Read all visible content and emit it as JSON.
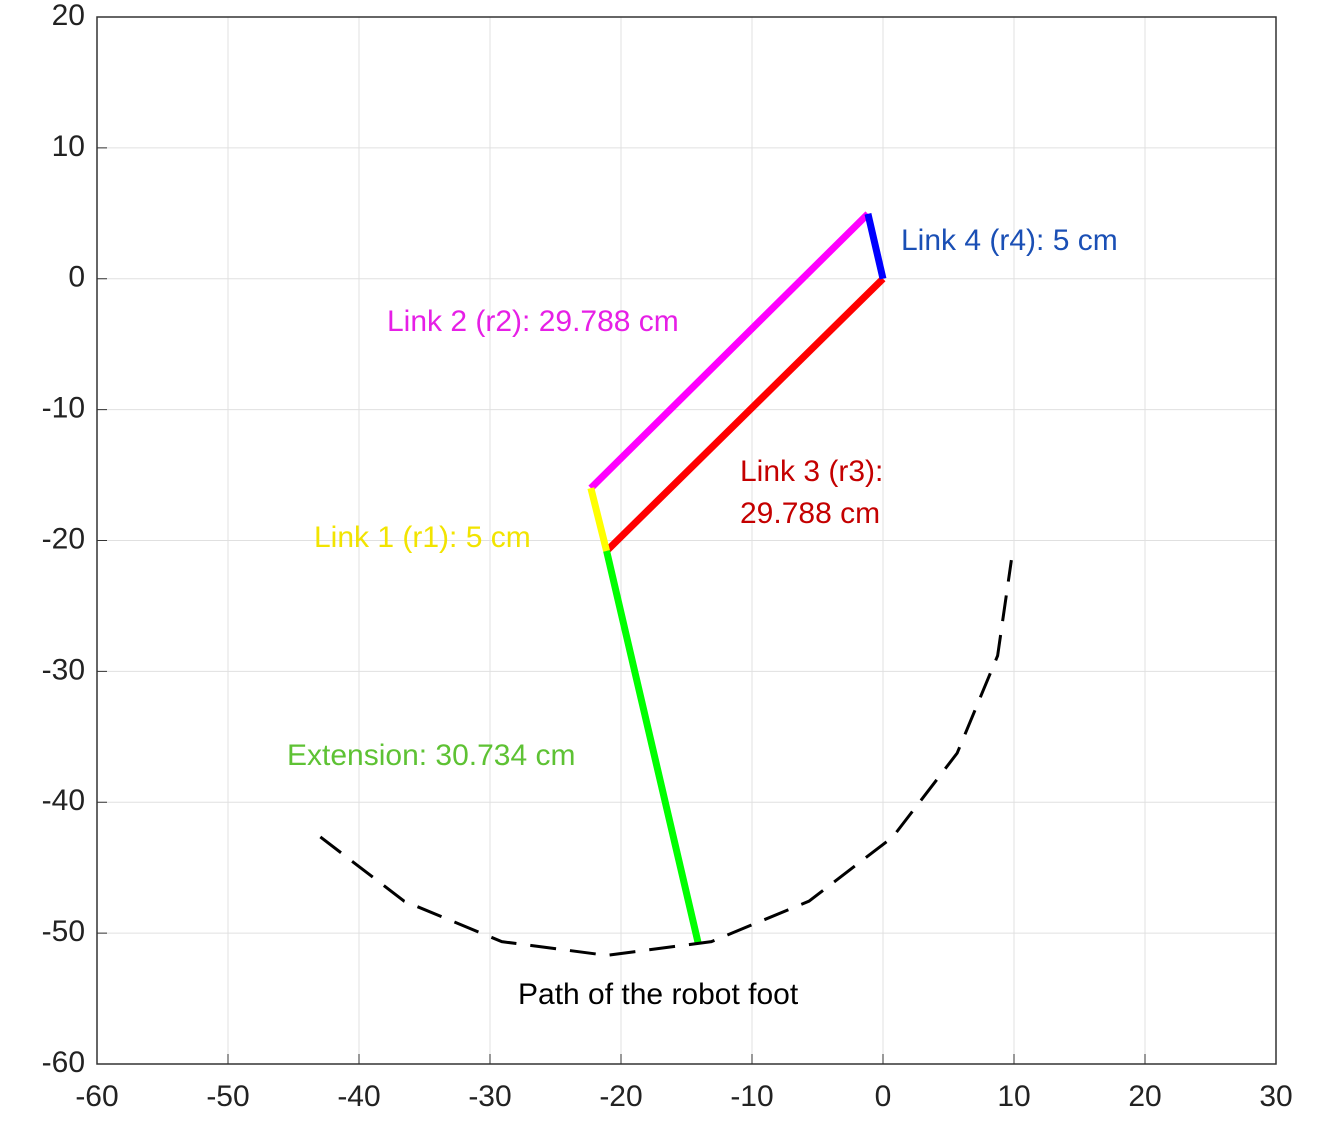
{
  "chart_data": {
    "type": "line",
    "xlim": [
      -60,
      30
    ],
    "ylim": [
      -60,
      20
    ],
    "xticks": [
      -60,
      -50,
      -40,
      -30,
      -20,
      -10,
      0,
      10,
      20,
      30
    ],
    "yticks": [
      -60,
      -50,
      -40,
      -30,
      -20,
      -10,
      0,
      10,
      20
    ],
    "grid": true,
    "series": [
      {
        "color": "#ff0000",
        "x": [
          0,
          -21.1
        ],
        "y": [
          0,
          -20.8
        ]
      },
      {
        "color": "#ff00ff",
        "x": [
          -1.15,
          -22.3
        ],
        "y": [
          4.96,
          -16.0
        ]
      },
      {
        "color": "#0000ff",
        "x": [
          0,
          -1.15
        ],
        "y": [
          0,
          4.96
        ]
      },
      {
        "color": "#ffff00",
        "x": [
          -22.3,
          -21.1
        ],
        "y": [
          -16.0,
          -20.8
        ]
      },
      {
        "color": "#00ff00",
        "x": [
          -21.1,
          -14.1
        ],
        "y": [
          -20.8,
          -50.8
        ]
      },
      {
        "color": "#000000",
        "dashed": true,
        "x": [
          -42.95,
          -36.55,
          -29.1,
          -21.1,
          -13.1,
          -5.65,
          0.75,
          5.66,
          8.75,
          9.8
        ],
        "y": [
          -42.65,
          -47.56,
          -50.65,
          -51.7,
          -50.65,
          -47.56,
          -42.65,
          -36.25,
          -28.8,
          -21.5
        ]
      }
    ],
    "annotations": [
      {
        "text": [
          "Link 4 (r4): 5 cm"
        ],
        "color": "#1a4fb5"
      },
      {
        "text": [
          "Link 2 (r2): 29.788 cm"
        ],
        "color": "#e61fe6"
      },
      {
        "text": [
          "Link 3 (r3):",
          "29.788 cm"
        ],
        "color": "#c40000"
      },
      {
        "text": [
          "Link 1 (r1): 5 cm"
        ],
        "color": "#f2e400"
      },
      {
        "text": [
          "Extension: 30.734 cm"
        ],
        "color": "#5ec234"
      },
      {
        "text": [
          "Path of the robot foot"
        ],
        "color": "#000000"
      }
    ]
  }
}
